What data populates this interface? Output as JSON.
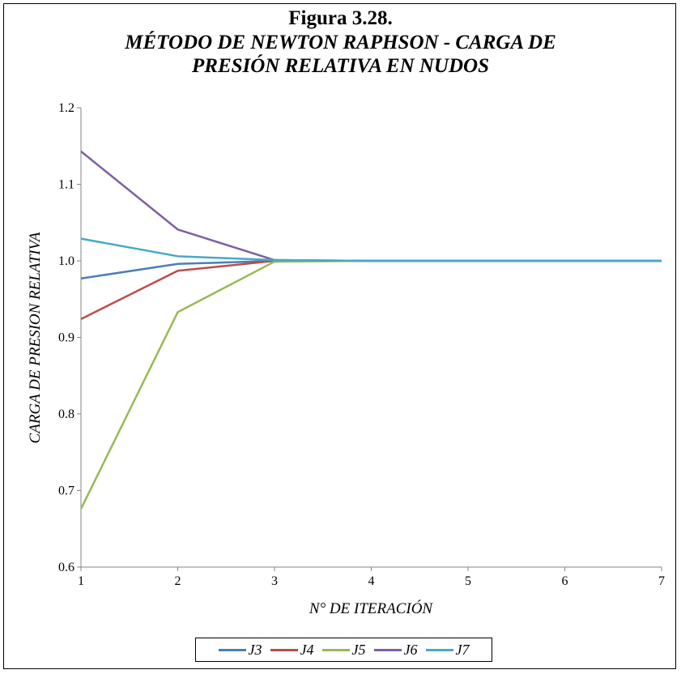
{
  "title": {
    "line1": "Figura 3.28.",
    "line2": "MÉTODO DE NEWTON RAPHSON - CARGA DE",
    "line3": "PRESIÓN RELATIVA EN NUDOS"
  },
  "chart_data": {
    "type": "line",
    "title": "MÉTODO DE NEWTON RAPHSON - CARGA DE PRESIÓN RELATIVA EN NUDOS",
    "xlabel": "N° DE ITERACIÓN",
    "ylabel": "CARGA DE PRESION RELATIVA",
    "x": [
      1,
      2,
      3,
      4,
      5,
      6,
      7
    ],
    "xlim": [
      1,
      7
    ],
    "ylim": [
      0.6,
      1.2
    ],
    "yticks": [
      "0.6",
      "0.7",
      "0.8",
      "0.9",
      "1.0",
      "1.1",
      "1.2"
    ],
    "xticks": [
      "1",
      "2",
      "3",
      "4",
      "5",
      "6",
      "7"
    ],
    "grid": false,
    "legend_position": "bottom",
    "series": [
      {
        "name": "J3",
        "color": "#4a7ebb",
        "values": [
          0.977,
          0.996,
          1.0,
          1.0,
          1.0,
          1.0,
          1.0
        ]
      },
      {
        "name": "J4",
        "color": "#be4b48",
        "values": [
          0.924,
          0.987,
          1.0,
          1.0,
          1.0,
          1.0,
          1.0
        ]
      },
      {
        "name": "J5",
        "color": "#98b954",
        "values": [
          0.676,
          0.933,
          0.999,
          1.0,
          1.0,
          1.0,
          1.0
        ]
      },
      {
        "name": "J6",
        "color": "#7d60a0",
        "values": [
          1.143,
          1.041,
          1.001,
          1.0,
          1.0,
          1.0,
          1.0
        ]
      },
      {
        "name": "J7",
        "color": "#46aac5",
        "values": [
          1.029,
          1.006,
          1.001,
          1.0,
          1.0,
          1.0,
          1.0
        ]
      }
    ]
  }
}
